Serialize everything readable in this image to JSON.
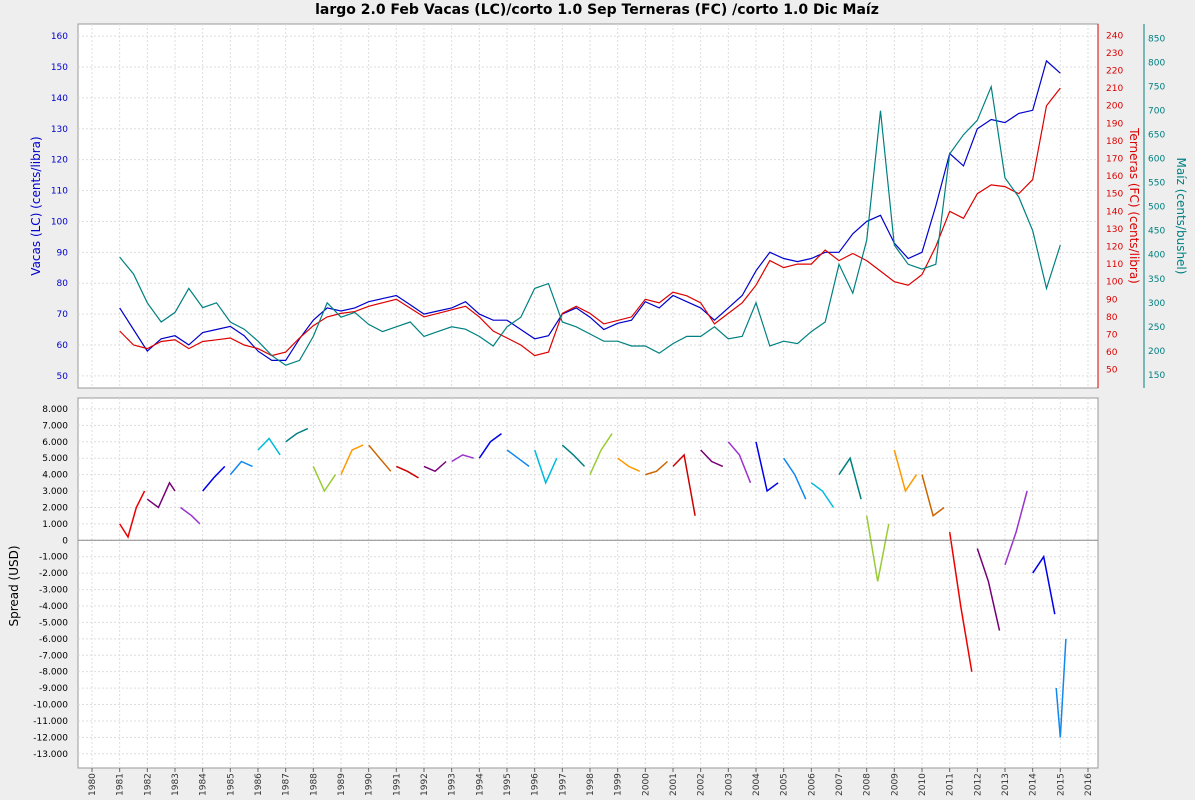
{
  "chart_data": [
    {
      "type": "line",
      "title": "largo 2.0 Feb Vacas (LC)/corto 1.0 Sep Terneras (FC) /corto 1.0 Dic Maíz",
      "xlabel": "",
      "x_range": [
        1980,
        2016
      ],
      "x_ticks": [
        "1980",
        "1981",
        "1982",
        "1983",
        "1984",
        "1985",
        "1986",
        "1987",
        "1988",
        "1989",
        "1990",
        "1991",
        "1992",
        "1993",
        "1994",
        "1995",
        "1996",
        "1997",
        "1998",
        "1999",
        "2000",
        "2001",
        "2002",
        "2003",
        "2004",
        "2005",
        "2006",
        "2007",
        "2008",
        "2009",
        "2010",
        "2011",
        "2012",
        "2013",
        "2014",
        "2015",
        "2016"
      ],
      "grid": true,
      "axes": [
        {
          "id": "left",
          "label": "Vacas (LC) (cents/libra)",
          "color": "#0000cc",
          "ylim": [
            48,
            162
          ],
          "ticks": [
            50,
            60,
            70,
            80,
            90,
            100,
            110,
            120,
            130,
            140,
            150,
            160
          ]
        },
        {
          "id": "right1",
          "label": "Terneras (FC)  (cents/libra)",
          "color": "#dd0000",
          "ylim": [
            43,
            243
          ],
          "ticks": [
            50,
            60,
            70,
            80,
            90,
            100,
            110,
            120,
            130,
            140,
            150,
            160,
            170,
            180,
            190,
            200,
            210,
            220,
            230,
            240
          ]
        },
        {
          "id": "right2",
          "label": "Maíz (cents/bushel)",
          "color": "#008080",
          "ylim": [
            135,
            868
          ],
          "ticks": [
            150,
            200,
            250,
            300,
            350,
            400,
            450,
            500,
            550,
            600,
            650,
            700,
            750,
            800,
            850
          ]
        }
      ],
      "series": [
        {
          "axis": "left",
          "color": "#0000cc",
          "x": [
            1981.0,
            1981.5,
            1982.0,
            1982.5,
            1983.0,
            1983.5,
            1984.0,
            1984.5,
            1985.0,
            1985.5,
            1986.0,
            1986.5,
            1987.0,
            1987.5,
            1988.0,
            1988.5,
            1989.0,
            1989.5,
            1990.0,
            1990.5,
            1991.0,
            1991.5,
            1992.0,
            1992.5,
            1993.0,
            1993.5,
            1994.0,
            1994.5,
            1995.0,
            1995.5,
            1996.0,
            1996.5,
            1997.0,
            1997.5,
            1998.0,
            1998.5,
            1999.0,
            1999.5,
            2000.0,
            2000.5,
            2001.0,
            2001.5,
            2002.0,
            2002.5,
            2003.0,
            2003.5,
            2004.0,
            2004.5,
            2005.0,
            2005.5,
            2006.0,
            2006.5,
            2007.0,
            2007.5,
            2008.0,
            2008.5,
            2009.0,
            2009.5,
            2010.0,
            2010.5,
            2011.0,
            2011.5,
            2012.0,
            2012.5,
            2013.0,
            2013.5,
            2014.0,
            2014.5,
            2015.0
          ],
          "y": [
            72,
            65,
            58,
            62,
            63,
            60,
            64,
            65,
            66,
            63,
            58,
            55,
            55,
            62,
            68,
            72,
            71,
            72,
            74,
            75,
            76,
            73,
            70,
            71,
            72,
            74,
            70,
            68,
            68,
            65,
            62,
            63,
            70,
            72,
            69,
            65,
            67,
            68,
            74,
            72,
            76,
            74,
            72,
            68,
            72,
            76,
            84,
            90,
            88,
            87,
            88,
            90,
            90,
            96,
            100,
            102,
            93,
            88,
            90,
            105,
            122,
            118,
            130,
            133,
            132,
            135,
            136,
            152,
            148
          ]
        },
        {
          "axis": "right1",
          "color": "#dd0000",
          "x": [
            1981.0,
            1981.5,
            1982.0,
            1982.5,
            1983.0,
            1983.5,
            1984.0,
            1984.5,
            1985.0,
            1985.5,
            1986.0,
            1986.5,
            1987.0,
            1987.5,
            1988.0,
            1988.5,
            1989.0,
            1989.5,
            1990.0,
            1990.5,
            1991.0,
            1991.5,
            1992.0,
            1992.5,
            1993.0,
            1993.5,
            1994.0,
            1994.5,
            1995.0,
            1995.5,
            1996.0,
            1996.5,
            1997.0,
            1997.5,
            1998.0,
            1998.5,
            1999.0,
            1999.5,
            2000.0,
            2000.5,
            2001.0,
            2001.5,
            2002.0,
            2002.5,
            2003.0,
            2003.5,
            2004.0,
            2004.5,
            2005.0,
            2005.5,
            2006.0,
            2006.5,
            2007.0,
            2007.5,
            2008.0,
            2008.5,
            2009.0,
            2009.5,
            2010.0,
            2010.5,
            2011.0,
            2011.5,
            2012.0,
            2012.5,
            2013.0,
            2013.5,
            2014.0,
            2014.5,
            2015.0
          ],
          "y": [
            72,
            64,
            62,
            66,
            67,
            62,
            66,
            67,
            68,
            64,
            62,
            58,
            60,
            68,
            75,
            80,
            82,
            83,
            86,
            88,
            90,
            85,
            80,
            82,
            84,
            86,
            80,
            72,
            68,
            64,
            58,
            60,
            82,
            86,
            82,
            76,
            78,
            80,
            90,
            88,
            94,
            92,
            88,
            76,
            82,
            88,
            98,
            112,
            108,
            110,
            110,
            118,
            112,
            116,
            112,
            106,
            100,
            98,
            104,
            120,
            140,
            136,
            150,
            155,
            154,
            150,
            158,
            200,
            210
          ]
        },
        {
          "axis": "right2",
          "color": "#008080",
          "x": [
            1981.0,
            1981.5,
            1982.0,
            1982.5,
            1983.0,
            1983.5,
            1984.0,
            1984.5,
            1985.0,
            1985.5,
            1986.0,
            1986.5,
            1987.0,
            1987.5,
            1988.0,
            1988.5,
            1989.0,
            1989.5,
            1990.0,
            1990.5,
            1991.0,
            1991.5,
            1992.0,
            1992.5,
            1993.0,
            1993.5,
            1994.0,
            1994.5,
            1995.0,
            1995.5,
            1996.0,
            1996.5,
            1997.0,
            1997.5,
            1998.0,
            1998.5,
            1999.0,
            1999.5,
            2000.0,
            2000.5,
            2001.0,
            2001.5,
            2002.0,
            2002.5,
            2003.0,
            2003.5,
            2004.0,
            2004.5,
            2005.0,
            2005.5,
            2006.0,
            2006.5,
            2007.0,
            2007.5,
            2008.0,
            2008.5,
            2009.0,
            2009.5,
            2010.0,
            2010.5,
            2011.0,
            2011.5,
            2012.0,
            2012.5,
            2013.0,
            2013.5,
            2014.0,
            2014.5,
            2015.0
          ],
          "y": [
            395,
            360,
            300,
            260,
            280,
            330,
            290,
            300,
            260,
            245,
            220,
            190,
            170,
            180,
            230,
            300,
            270,
            280,
            255,
            240,
            250,
            260,
            230,
            240,
            250,
            245,
            230,
            210,
            250,
            270,
            330,
            340,
            260,
            250,
            235,
            220,
            220,
            210,
            210,
            195,
            215,
            230,
            230,
            250,
            225,
            230,
            300,
            210,
            220,
            215,
            240,
            260,
            380,
            320,
            430,
            700,
            420,
            380,
            370,
            380,
            610,
            650,
            680,
            750,
            560,
            520,
            450,
            330,
            420
          ]
        }
      ]
    },
    {
      "type": "line",
      "title": "",
      "xlabel": "",
      "ylabel": "Spread (USD)",
      "x_range": [
        1980,
        2016
      ],
      "ylim": [
        -13500,
        8300
      ],
      "y_ticks": [
        "8.000",
        "7.000",
        "6.000",
        "5.000",
        "4.000",
        "3.000",
        "2.000",
        "1.000",
        "0",
        "-1.000",
        "-2.000",
        "-3.000",
        "-4.000",
        "-5.000",
        "-6.000",
        "-7.000",
        "-8.000",
        "-9.000",
        "-10.000",
        "-11.000",
        "-12.000",
        "-13.000"
      ],
      "y_tick_values": [
        8000,
        7000,
        6000,
        5000,
        4000,
        3000,
        2000,
        1000,
        0,
        -1000,
        -2000,
        -3000,
        -4000,
        -5000,
        -6000,
        -7000,
        -8000,
        -9000,
        -10000,
        -11000,
        -12000,
        -13000
      ],
      "grid": true,
      "zero_line": true,
      "series": [
        {
          "x": [
            1981.0,
            1981.3,
            1981.6,
            1981.9
          ],
          "y": [
            1000,
            200,
            2000,
            3000
          ],
          "color": "#ee0000"
        },
        {
          "x": [
            1982.0,
            1982.4,
            1982.8,
            1983.0
          ],
          "y": [
            2500,
            2000,
            3500,
            3000
          ],
          "color": "#770077"
        },
        {
          "x": [
            1983.2,
            1983.6,
            1983.9
          ],
          "y": [
            2000,
            1500,
            1000
          ],
          "color": "#9933cc"
        },
        {
          "x": [
            1984.0,
            1984.4,
            1984.8
          ],
          "y": [
            3000,
            3800,
            4500
          ],
          "color": "#0000ee"
        },
        {
          "x": [
            1985.0,
            1985.4,
            1985.8
          ],
          "y": [
            4000,
            4800,
            4500
          ],
          "color": "#1188ee"
        },
        {
          "x": [
            1986.0,
            1986.4,
            1986.8
          ],
          "y": [
            5500,
            6200,
            5200
          ],
          "color": "#00bbdd"
        },
        {
          "x": [
            1987.0,
            1987.4,
            1987.8
          ],
          "y": [
            6000,
            6500,
            6800
          ],
          "color": "#008080"
        },
        {
          "x": [
            1988.0,
            1988.4,
            1988.8
          ],
          "y": [
            4500,
            3000,
            4000
          ],
          "color": "#99cc33"
        },
        {
          "x": [
            1989.0,
            1989.4,
            1989.8
          ],
          "y": [
            4000,
            5500,
            5800
          ],
          "color": "#ff9900"
        },
        {
          "x": [
            1990.0,
            1990.4,
            1990.8
          ],
          "y": [
            5800,
            5000,
            4200
          ],
          "color": "#cc6600"
        },
        {
          "x": [
            1991.0,
            1991.4,
            1991.8
          ],
          "y": [
            4500,
            4200,
            3800
          ],
          "color": "#cc0000"
        },
        {
          "x": [
            1992.0,
            1992.4,
            1992.8
          ],
          "y": [
            4500,
            4200,
            4800
          ],
          "color": "#770077"
        },
        {
          "x": [
            1993.0,
            1993.4,
            1993.8
          ],
          "y": [
            4800,
            5200,
            5000
          ],
          "color": "#9933cc"
        },
        {
          "x": [
            1994.0,
            1994.4,
            1994.8
          ],
          "y": [
            5000,
            6000,
            6500
          ],
          "color": "#0000ee"
        },
        {
          "x": [
            1995.0,
            1995.4,
            1995.8
          ],
          "y": [
            5500,
            5000,
            4500
          ],
          "color": "#1188ee"
        },
        {
          "x": [
            1996.0,
            1996.4,
            1996.8
          ],
          "y": [
            5500,
            3500,
            5000
          ],
          "color": "#00bbdd"
        },
        {
          "x": [
            1997.0,
            1997.4,
            1997.8
          ],
          "y": [
            5800,
            5200,
            4500
          ],
          "color": "#008080"
        },
        {
          "x": [
            1998.0,
            1998.4,
            1998.8
          ],
          "y": [
            4000,
            5500,
            6500
          ],
          "color": "#99cc33"
        },
        {
          "x": [
            1999.0,
            1999.4,
            1999.8
          ],
          "y": [
            5000,
            4500,
            4200
          ],
          "color": "#ff9900"
        },
        {
          "x": [
            2000.0,
            2000.4,
            2000.8
          ],
          "y": [
            4000,
            4200,
            4800
          ],
          "color": "#cc6600"
        },
        {
          "x": [
            2001.0,
            2001.4,
            2001.8
          ],
          "y": [
            4500,
            5200,
            1500
          ],
          "color": "#cc0000"
        },
        {
          "x": [
            2002.0,
            2002.4,
            2002.8
          ],
          "y": [
            5500,
            4800,
            4500
          ],
          "color": "#770077"
        },
        {
          "x": [
            2003.0,
            2003.4,
            2003.8
          ],
          "y": [
            6000,
            5200,
            3500
          ],
          "color": "#9933cc"
        },
        {
          "x": [
            2004.0,
            2004.4,
            2004.8
          ],
          "y": [
            6000,
            3000,
            3500
          ],
          "color": "#0000ee"
        },
        {
          "x": [
            2005.0,
            2005.4,
            2005.8
          ],
          "y": [
            5000,
            4000,
            2500
          ],
          "color": "#1188ee"
        },
        {
          "x": [
            2006.0,
            2006.4,
            2006.8
          ],
          "y": [
            3500,
            3000,
            2000
          ],
          "color": "#00bbdd"
        },
        {
          "x": [
            2007.0,
            2007.4,
            2007.8
          ],
          "y": [
            4000,
            5000,
            2500
          ],
          "color": "#008080"
        },
        {
          "x": [
            2008.0,
            2008.4,
            2008.8
          ],
          "y": [
            1500,
            -2500,
            1000
          ],
          "color": "#99cc33"
        },
        {
          "x": [
            2009.0,
            2009.4,
            2009.8
          ],
          "y": [
            5500,
            3000,
            4000
          ],
          "color": "#ff9900"
        },
        {
          "x": [
            2010.0,
            2010.4,
            2010.8
          ],
          "y": [
            4000,
            1500,
            2000
          ],
          "color": "#cc6600"
        },
        {
          "x": [
            2011.0,
            2011.4,
            2011.8
          ],
          "y": [
            500,
            -4000,
            -8000
          ],
          "color": "#ee0000"
        },
        {
          "x": [
            2012.0,
            2012.4,
            2012.8
          ],
          "y": [
            -500,
            -2500,
            -5500
          ],
          "color": "#770077"
        },
        {
          "x": [
            2013.0,
            2013.4,
            2013.8
          ],
          "y": [
            -1500,
            500,
            3000
          ],
          "color": "#9933cc"
        },
        {
          "x": [
            2014.0,
            2014.4,
            2014.8
          ],
          "y": [
            -2000,
            -1000,
            -4500
          ],
          "color": "#0000ee"
        },
        {
          "x": [
            2014.85,
            2015.0,
            2015.2
          ],
          "y": [
            -9000,
            -12000,
            -6000
          ],
          "color": "#1188ee"
        }
      ]
    }
  ]
}
